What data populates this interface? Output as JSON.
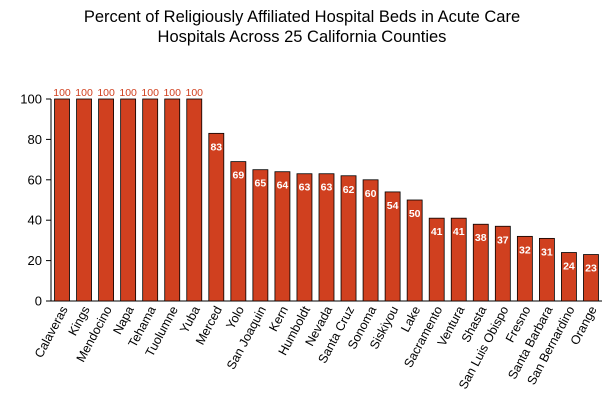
{
  "chart_data": {
    "type": "bar",
    "title_lines": [
      "Percent of Religiously Affiliated Hospital Beds in Acute Care",
      "Hospitals Across 25 California Counties"
    ],
    "categories": [
      "Calaveras",
      "Kings",
      "Mendocino",
      "Napa",
      "Tehama",
      "Tuolumne",
      "Yuba",
      "Merced",
      "Yolo",
      "San Joaquin",
      "Kern",
      "Humboldt",
      "Nevada",
      "Santa Cruz",
      "Sonoma",
      "Siskiyou",
      "Lake",
      "Sacramento",
      "Ventura",
      "Shasta",
      "San Luis Obispo",
      "Fresno",
      "Santa Barbara",
      "San Bernardino",
      "Orange"
    ],
    "values": [
      100,
      100,
      100,
      100,
      100,
      100,
      100,
      83,
      69,
      65,
      64,
      63,
      63,
      62,
      60,
      54,
      50,
      41,
      41,
      38,
      37,
      32,
      31,
      24,
      23
    ],
    "data_labels": [
      "100",
      "100",
      "100",
      "100",
      "100",
      "100",
      "100",
      "83",
      "69",
      "65",
      "64",
      "63",
      "63",
      "62",
      "60",
      "54",
      "50",
      "41",
      "41",
      "38",
      "37",
      "32",
      "31",
      "24",
      "23"
    ],
    "yticks": [
      "0",
      "20",
      "40",
      "60",
      "80",
      "100"
    ],
    "ylim": [
      0,
      100
    ],
    "bar_color": "#d0401f",
    "label_color_above": "#d0401f",
    "label_color_inside": "#ffffff",
    "grid": false,
    "legend": "none"
  }
}
